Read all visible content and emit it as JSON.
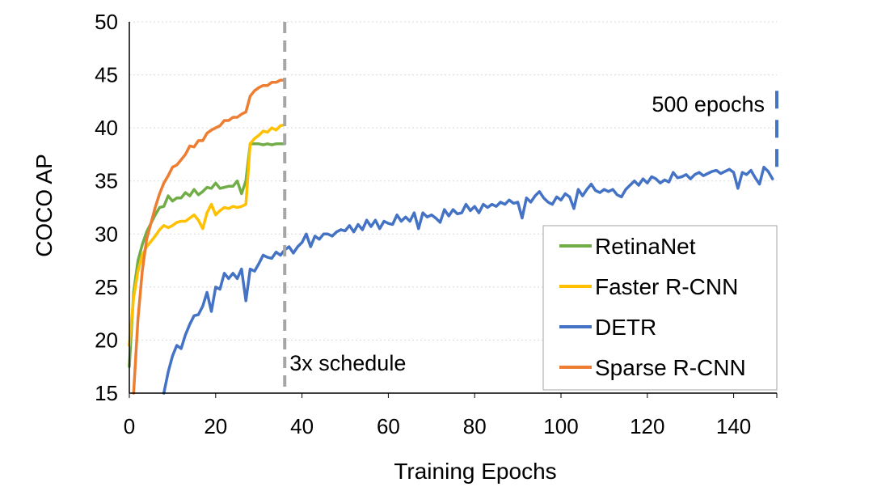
{
  "chart_data": {
    "type": "line",
    "xlabel": "Training Epochs",
    "ylabel": "COCO AP",
    "xlim": [
      0,
      150
    ],
    "ylim": [
      15,
      50
    ],
    "xticks": [
      0,
      20,
      40,
      60,
      80,
      100,
      120,
      140
    ],
    "yticks": [
      15,
      20,
      25,
      30,
      35,
      40,
      45,
      50
    ],
    "grid": "horizontal-dotted",
    "legend_position": "bottom-right",
    "series": [
      {
        "name": "RetinaNet",
        "color": "#70AD47",
        "x": [
          0,
          1,
          2,
          3,
          4,
          5,
          6,
          7,
          8,
          9,
          10,
          11,
          12,
          13,
          14,
          15,
          16,
          17,
          18,
          19,
          20,
          21,
          22,
          23,
          24,
          25,
          26,
          27,
          28,
          29,
          30,
          31,
          32,
          33,
          34,
          35,
          36
        ],
        "y": [
          17.5,
          24.5,
          27.5,
          29.0,
          30.2,
          31.0,
          31.8,
          32.5,
          32.6,
          33.6,
          33.1,
          33.4,
          33.4,
          33.9,
          33.6,
          34.2,
          33.7,
          34.0,
          34.4,
          34.3,
          34.8,
          34.3,
          34.4,
          34.5,
          34.5,
          35.0,
          33.8,
          35.0,
          38.5,
          38.5,
          38.5,
          38.4,
          38.5,
          38.4,
          38.5,
          38.5,
          38.5
        ]
      },
      {
        "name": "Faster R-CNN",
        "color": "#FFC000",
        "x": [
          0,
          1,
          2,
          3,
          4,
          5,
          6,
          7,
          8,
          9,
          10,
          11,
          12,
          13,
          14,
          15,
          16,
          17,
          18,
          19,
          20,
          21,
          22,
          23,
          24,
          25,
          26,
          27,
          28,
          29,
          30,
          31,
          32,
          33,
          34,
          35,
          36
        ],
        "y": [
          19.5,
          24.0,
          26.5,
          28.0,
          28.8,
          29.3,
          29.8,
          30.4,
          30.8,
          30.6,
          30.8,
          31.1,
          31.2,
          31.2,
          31.5,
          31.8,
          31.3,
          30.5,
          32.0,
          32.8,
          31.8,
          32.2,
          32.5,
          32.4,
          32.6,
          32.5,
          32.6,
          32.8,
          38.5,
          39.0,
          39.3,
          39.7,
          39.6,
          40.0,
          39.8,
          40.2,
          40.3
        ]
      },
      {
        "name": "DETR",
        "color": "#4472C4",
        "x": [
          8,
          9,
          10,
          11,
          12,
          13,
          14,
          15,
          16,
          17,
          18,
          19,
          20,
          21,
          22,
          23,
          24,
          25,
          26,
          27,
          28,
          29,
          30,
          31,
          32,
          33,
          34,
          35,
          36,
          37,
          38,
          39,
          40,
          41,
          42,
          43,
          44,
          45,
          46,
          47,
          48,
          49,
          50,
          51,
          52,
          53,
          54,
          55,
          56,
          57,
          58,
          59,
          60,
          61,
          62,
          63,
          64,
          65,
          66,
          67,
          68,
          69,
          70,
          71,
          72,
          73,
          74,
          75,
          76,
          77,
          78,
          79,
          80,
          81,
          82,
          83,
          84,
          85,
          86,
          87,
          88,
          89,
          90,
          91,
          92,
          93,
          94,
          95,
          96,
          97,
          98,
          99,
          100,
          101,
          102,
          103,
          104,
          105,
          106,
          107,
          108,
          109,
          110,
          111,
          112,
          113,
          114,
          115,
          116,
          117,
          118,
          119,
          120,
          121,
          122,
          123,
          124,
          125,
          126,
          127,
          128,
          129,
          130,
          131,
          132,
          133,
          134,
          135,
          136,
          137,
          138,
          139,
          140,
          141,
          142,
          143,
          144,
          145,
          146,
          147,
          148,
          149
        ],
        "y": [
          15.0,
          17.0,
          18.5,
          19.5,
          19.2,
          20.5,
          21.5,
          22.3,
          22.4,
          23.2,
          24.5,
          22.7,
          25.0,
          24.8,
          26.3,
          25.8,
          26.3,
          25.8,
          26.7,
          23.7,
          26.7,
          26.5,
          27.2,
          28.0,
          27.8,
          27.7,
          28.3,
          28.0,
          28.5,
          28.8,
          28.2,
          28.8,
          29.2,
          30.0,
          28.8,
          29.8,
          29.5,
          30.0,
          30.0,
          29.8,
          30.2,
          30.4,
          30.3,
          30.8,
          30.2,
          30.9,
          30.4,
          31.3,
          30.7,
          31.3,
          30.5,
          31.2,
          31.0,
          30.9,
          31.8,
          31.2,
          31.6,
          31.2,
          32.0,
          30.5,
          32.0,
          31.6,
          31.8,
          31.5,
          31.1,
          32.3,
          31.7,
          32.3,
          31.9,
          32.0,
          32.8,
          32.2,
          32.6,
          32.0,
          32.8,
          32.5,
          32.8,
          32.6,
          33.0,
          32.8,
          33.2,
          32.9,
          33.0,
          31.5,
          33.4,
          33.0,
          33.6,
          34.0,
          33.4,
          33.0,
          32.8,
          33.5,
          33.2,
          33.8,
          33.5,
          32.4,
          34.2,
          33.6,
          34.2,
          34.7,
          34.1,
          33.9,
          34.2,
          34.0,
          34.2,
          33.7,
          33.5,
          34.2,
          34.6,
          35.0,
          34.6,
          35.2,
          34.8,
          35.4,
          35.2,
          34.8,
          35.1,
          34.9,
          35.8,
          35.3,
          35.4,
          35.6,
          35.2,
          35.6,
          35.8,
          35.5,
          35.7,
          35.9,
          36.0,
          35.7,
          35.9,
          36.1,
          35.8,
          34.3,
          35.8,
          35.6,
          36.0,
          35.3,
          34.7,
          36.3,
          35.9,
          35.2
        ]
      },
      {
        "name": "Sparse R-CNN",
        "color": "#ED7D31",
        "x": [
          1,
          2,
          3,
          4,
          5,
          6,
          7,
          8,
          9,
          10,
          11,
          12,
          13,
          14,
          15,
          16,
          17,
          18,
          19,
          20,
          21,
          22,
          23,
          24,
          25,
          26,
          27,
          28,
          29,
          30,
          31,
          32,
          33,
          34,
          35,
          36
        ],
        "y": [
          15.0,
          22.0,
          26.5,
          29.5,
          31.0,
          32.5,
          33.8,
          34.8,
          35.5,
          36.3,
          36.5,
          37.0,
          37.5,
          38.3,
          38.2,
          38.8,
          38.8,
          39.5,
          39.8,
          40.0,
          40.2,
          40.7,
          40.7,
          41.0,
          41.0,
          41.3,
          41.5,
          43.0,
          43.5,
          43.8,
          44.0,
          44.0,
          44.3,
          44.3,
          44.5,
          44.5
        ]
      }
    ],
    "annotations": [
      {
        "text": "3x schedule",
        "x": 36,
        "style": "vertical-dashed",
        "color": "#A6A6A6"
      },
      {
        "text": "500 epochs",
        "x": 150,
        "y_from": 35.3,
        "y_to": 43.5,
        "style": "vertical-dashed",
        "color": "#4472C4"
      }
    ]
  }
}
